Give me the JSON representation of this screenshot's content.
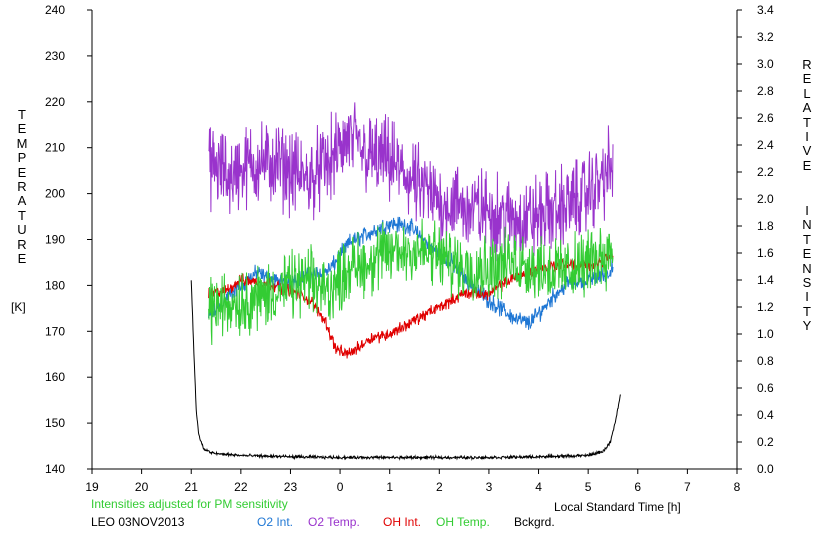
{
  "chart_data": {
    "type": "line",
    "left_axis": {
      "title_letters": [
        "T",
        "E",
        "M",
        "P",
        "E",
        "R",
        "A",
        "T",
        "U",
        "R",
        "E"
      ],
      "unit": "[K]",
      "ylim": [
        140,
        240
      ],
      "ticks": [
        140,
        150,
        160,
        170,
        180,
        190,
        200,
        210,
        220,
        230,
        240
      ]
    },
    "right_axis": {
      "title_word1": [
        "R",
        "E",
        "L",
        "A",
        "T",
        "I",
        "V",
        "E"
      ],
      "title_word2": [
        "I",
        "N",
        "T",
        "E",
        "N",
        "S",
        "I",
        "T",
        "Y"
      ],
      "ylim": [
        0.0,
        3.4
      ],
      "ticks": [
        "0.0",
        "0.2",
        "0.4",
        "0.6",
        "0.8",
        "1.0",
        "1.2",
        "1.4",
        "1.6",
        "1.8",
        "2.0",
        "2.2",
        "2.4",
        "2.6",
        "2.8",
        "3.0",
        "3.2",
        "3.4"
      ]
    },
    "x_axis": {
      "label": "Local Standard Time [h]",
      "range_hours_from_19": [
        0,
        13
      ],
      "tick_labels": [
        "19",
        "20",
        "21",
        "22",
        "23",
        "0",
        "1",
        "2",
        "3",
        "4",
        "5",
        "6",
        "7",
        "8"
      ]
    },
    "note": "Intensities adjusted for PM sensitivity",
    "station": "LEO 03NOV2013",
    "series": [
      {
        "name": "O2 Int.",
        "axis": "right",
        "color": "#1f77d4",
        "noise": 0.035,
        "x": [
          21.35,
          21.8,
          22.3,
          22.8,
          23.3,
          23.8,
          24.2,
          24.6,
          25.0,
          25.4,
          25.8,
          26.2,
          26.6,
          27.0,
          27.5,
          27.8,
          28.0,
          28.3,
          28.6,
          29.0,
          29.4,
          29.5
        ],
        "y": [
          1.12,
          1.3,
          1.45,
          1.38,
          1.42,
          1.48,
          1.68,
          1.75,
          1.82,
          1.8,
          1.65,
          1.55,
          1.38,
          1.25,
          1.12,
          1.08,
          1.15,
          1.28,
          1.38,
          1.4,
          1.45,
          1.5
        ]
      },
      {
        "name": "O2 Temp.",
        "axis": "left",
        "color": "#9933cc",
        "noise": 5.0,
        "x": [
          21.35,
          21.8,
          22.3,
          22.8,
          23.3,
          23.8,
          24.2,
          24.6,
          25.0,
          25.5,
          26.0,
          26.5,
          27.0,
          27.5,
          28.0,
          28.5,
          29.0,
          29.5
        ],
        "y": [
          206,
          204,
          207,
          206,
          203,
          207,
          212,
          208,
          207,
          202,
          198,
          197,
          196,
          194,
          195,
          197,
          200,
          206
        ]
      },
      {
        "name": "OH Int.",
        "axis": "right",
        "color": "#e00000",
        "noise": 0.025,
        "x": [
          21.35,
          21.7,
          22.0,
          22.5,
          23.0,
          23.4,
          23.7,
          23.9,
          24.1,
          24.3,
          24.6,
          25.0,
          25.5,
          26.0,
          26.5,
          27.0,
          27.5,
          28.0,
          28.5,
          29.0,
          29.5
        ],
        "y": [
          1.3,
          1.32,
          1.4,
          1.38,
          1.32,
          1.25,
          1.1,
          0.9,
          0.85,
          0.88,
          0.97,
          1.0,
          1.1,
          1.2,
          1.3,
          1.3,
          1.42,
          1.48,
          1.52,
          1.5,
          1.58
        ]
      },
      {
        "name": "OH Temp.",
        "axis": "left",
        "color": "#33cc33",
        "noise": 4.0,
        "x": [
          21.35,
          21.8,
          22.3,
          22.8,
          23.3,
          23.8,
          24.2,
          24.6,
          25.0,
          25.5,
          26.0,
          26.5,
          27.0,
          27.5,
          28.0,
          28.5,
          29.0,
          29.5
        ],
        "y": [
          175,
          176,
          177,
          179,
          181,
          179,
          184,
          185,
          187,
          188,
          186,
          184,
          184,
          185,
          184,
          183,
          185,
          188
        ]
      },
      {
        "name": "Bckgrd.",
        "axis": "right",
        "color": "#000000",
        "noise": 0.006,
        "x": [
          21.0,
          21.05,
          21.1,
          21.15,
          21.25,
          21.4,
          21.6,
          22.0,
          23.0,
          24.0,
          25.0,
          26.0,
          27.0,
          28.0,
          29.0,
          29.3,
          29.45,
          29.55,
          29.65
        ],
        "y": [
          1.4,
          0.9,
          0.45,
          0.25,
          0.15,
          0.12,
          0.11,
          0.1,
          0.09,
          0.085,
          0.085,
          0.085,
          0.085,
          0.09,
          0.1,
          0.13,
          0.2,
          0.35,
          0.55
        ]
      }
    ]
  }
}
